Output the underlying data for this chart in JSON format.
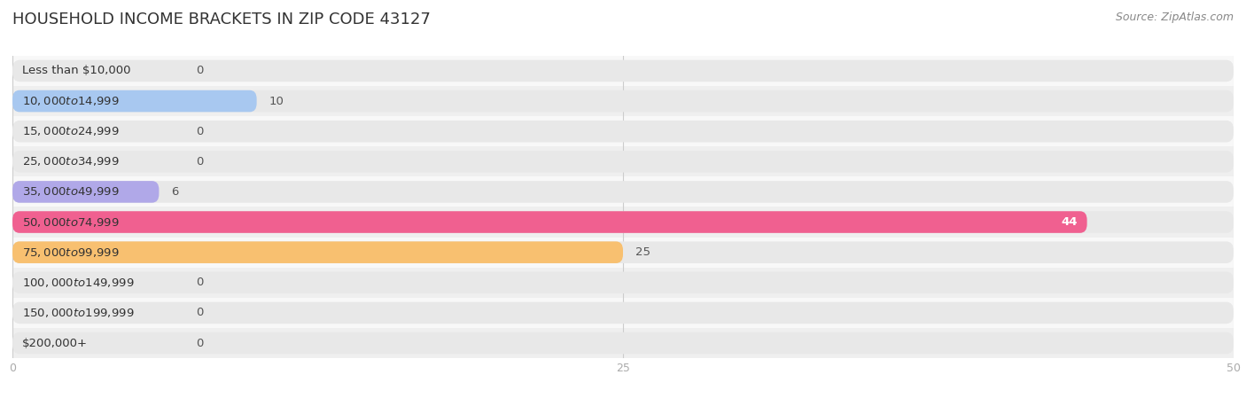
{
  "title": "HOUSEHOLD INCOME BRACKETS IN ZIP CODE 43127",
  "source": "Source: ZipAtlas.com",
  "categories": [
    "Less than $10,000",
    "$10,000 to $14,999",
    "$15,000 to $24,999",
    "$25,000 to $34,999",
    "$35,000 to $49,999",
    "$50,000 to $74,999",
    "$75,000 to $99,999",
    "$100,000 to $149,999",
    "$150,000 to $199,999",
    "$200,000+"
  ],
  "values": [
    0,
    10,
    0,
    0,
    6,
    44,
    25,
    0,
    0,
    0
  ],
  "bar_colors": [
    "#F4A0A0",
    "#A8C8F0",
    "#C8A8E8",
    "#70D0C0",
    "#B0A8E8",
    "#F06090",
    "#F8C070",
    "#F4A0A0",
    "#A8C8F0",
    "#D8A8D8"
  ],
  "background_color": "#ffffff",
  "row_colors": [
    "#f8f8f8",
    "#efefef"
  ],
  "pill_bg_color": "#e8e8e8",
  "xlim": [
    0,
    50
  ],
  "xticks": [
    0,
    25,
    50
  ],
  "title_fontsize": 13,
  "label_fontsize": 9.5,
  "value_fontsize": 9.5,
  "source_fontsize": 9
}
